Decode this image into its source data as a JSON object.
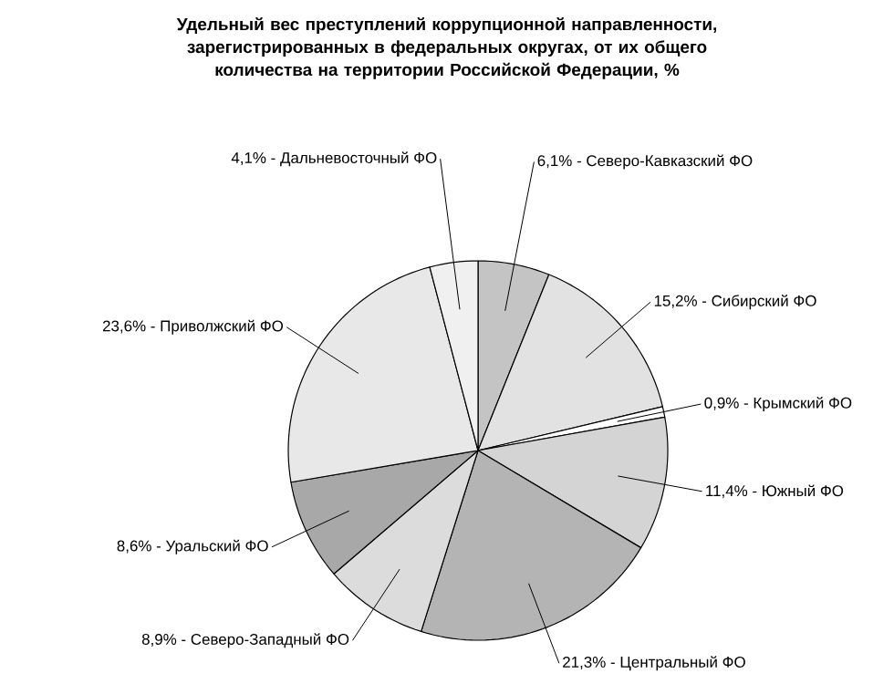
{
  "chart_data": {
    "type": "pie",
    "title": "Удельный вес преступлений коррупционной направленности, зарегистрированных в федеральных округах, от их общего количества на территории Российской Федерации, %",
    "categories": [
      "Северо-Кавказский ФО",
      "Сибирский ФО",
      "Крымский ФО",
      "Южный ФО",
      "Центральный ФО",
      "Северо-Западный ФО",
      "Уральский ФО",
      "Приволжский ФО",
      "Дальневосточный ФО"
    ],
    "values": [
      6.1,
      15.2,
      0.9,
      11.4,
      21.3,
      8.9,
      8.6,
      23.6,
      4.1
    ],
    "value_labels": [
      "6,1% -",
      "15,2% -",
      "0,9% -",
      "11,4% -",
      "21,3% -",
      "8,9% -",
      "8,6% -",
      "23,6% -",
      "4,1% -"
    ],
    "colors": [
      "#c4c4c4",
      "#e2e2e2",
      "#ffffff",
      "#d4d4d4",
      "#b4b4b4",
      "#dcdcdc",
      "#a8a8a8",
      "#e8e8e8",
      "#f0f0f0"
    ]
  }
}
